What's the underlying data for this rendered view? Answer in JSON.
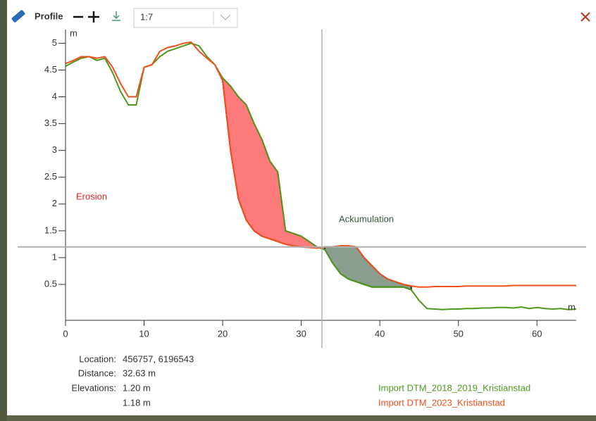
{
  "toolbar": {
    "title": "Profile",
    "scale": "1:7"
  },
  "chart_data": {
    "type": "line",
    "x": [
      0,
      1,
      2,
      3,
      4,
      5,
      6,
      7,
      8,
      9,
      10,
      11,
      12,
      13,
      14,
      15,
      16,
      17,
      18,
      19,
      20,
      21,
      22,
      23,
      24,
      25,
      26,
      27,
      28,
      29,
      30,
      31,
      32,
      33,
      34,
      35,
      36,
      37,
      38,
      39,
      40,
      41,
      42,
      43,
      44,
      45,
      46,
      47,
      48,
      49,
      50,
      51,
      52,
      53,
      54,
      55,
      56,
      57,
      58,
      59,
      60,
      61,
      62,
      63,
      64,
      65
    ],
    "xlim": [
      0,
      65
    ],
    "xticks": [
      0,
      10,
      20,
      30,
      40,
      50,
      60
    ],
    "ylim": [
      -0.17,
      5.15
    ],
    "yticks": [
      0.5,
      1,
      1.5,
      2,
      2.5,
      3,
      3.5,
      4,
      4.5,
      5
    ],
    "x_label": "m",
    "y_label": "m",
    "series": [
      {
        "name": "Import DTM_2018_2019_Kristianstad",
        "color": "#4e9a1e",
        "values": [
          4.57,
          4.65,
          4.72,
          4.75,
          4.68,
          4.72,
          4.45,
          4.1,
          3.85,
          3.85,
          4.55,
          4.6,
          4.75,
          4.85,
          4.9,
          4.95,
          5.0,
          4.95,
          4.75,
          4.6,
          4.35,
          4.2,
          4.0,
          3.85,
          3.5,
          3.2,
          2.8,
          2.6,
          1.5,
          1.45,
          1.4,
          1.3,
          1.2,
          1.15,
          0.9,
          0.7,
          0.6,
          0.55,
          0.5,
          0.45,
          0.45,
          0.45,
          0.45,
          0.45,
          0.4,
          0.2,
          0.05,
          0.04,
          0.03,
          0.04,
          0.04,
          0.05,
          0.05,
          0.06,
          0.06,
          0.07,
          0.07,
          0.06,
          0.08,
          0.05,
          0.07,
          0.05,
          0.04,
          0.05,
          0.03,
          0.04
        ]
      },
      {
        "name": "Import DTM_2023_Kristianstad",
        "color": "#f0501e",
        "values": [
          4.62,
          4.68,
          4.75,
          4.75,
          4.72,
          4.75,
          4.55,
          4.25,
          4.0,
          4.0,
          4.55,
          4.6,
          4.85,
          4.92,
          4.95,
          5.0,
          5.02,
          4.85,
          4.72,
          4.6,
          4.3,
          3.0,
          2.1,
          1.7,
          1.5,
          1.4,
          1.35,
          1.3,
          1.25,
          1.22,
          1.2,
          1.19,
          1.18,
          1.2,
          1.2,
          1.22,
          1.22,
          1.2,
          1.0,
          0.85,
          0.7,
          0.6,
          0.55,
          0.5,
          0.47,
          0.45,
          0.45,
          0.46,
          0.46,
          0.46,
          0.46,
          0.47,
          0.47,
          0.47,
          0.47,
          0.47,
          0.47,
          0.48,
          0.48,
          0.48,
          0.48,
          0.48,
          0.48,
          0.48,
          0.48,
          0.48
        ]
      }
    ],
    "annotations": [
      "Erosion",
      "Ackumulation"
    ]
  },
  "info": {
    "location_label": "Location:",
    "location": "456757, 6196543",
    "distance_label": "Distance:",
    "distance": "32.63 m",
    "elevations_label": "Elevations:",
    "elevations": [
      "1.20 m",
      "1.18 m"
    ]
  }
}
